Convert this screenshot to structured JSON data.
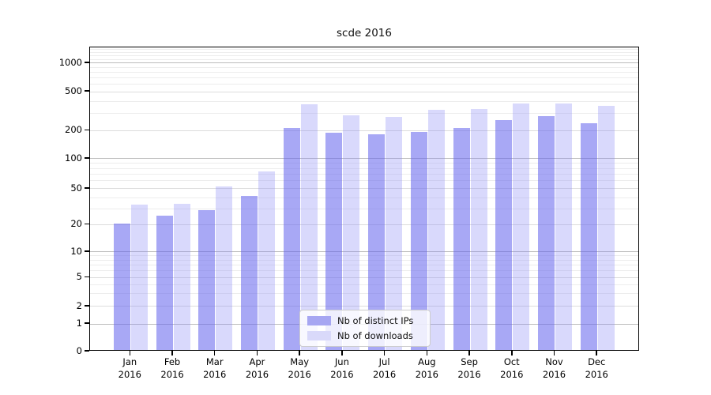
{
  "title": "scde 2016",
  "chart_data": {
    "type": "bar",
    "title": "scde 2016",
    "categories": [
      "Jan 2016",
      "Feb 2016",
      "Mar 2016",
      "Apr 2016",
      "May 2016",
      "Jun 2016",
      "Jul 2016",
      "Aug 2016",
      "Sep 2016",
      "Oct 2016",
      "Nov 2016",
      "Dec 2016"
    ],
    "series": [
      {
        "name": "Nb of distinct IPs",
        "color": "rgba(102,102,238,0.57)",
        "legend_color": "#a6a6f2",
        "values": [
          20,
          24,
          28,
          40,
          207,
          184,
          176,
          186,
          206,
          249,
          273,
          231
        ]
      },
      {
        "name": "Nb of downloads",
        "color": "rgba(140,140,245,0.33)",
        "legend_color": "#d9d9fa",
        "values": [
          32,
          33,
          51,
          72,
          357,
          275,
          268,
          315,
          319,
          364,
          366,
          344
        ]
      }
    ],
    "xlabel": "",
    "ylabel": "",
    "yscale": "symlog",
    "yticks": [
      0,
      1,
      2,
      5,
      10,
      20,
      50,
      100,
      200,
      500,
      1000
    ],
    "ylim": [
      0,
      1450
    ],
    "grid": "both",
    "legend_position": "inside lower-center",
    "colors": {
      "major_gridline": "#bdbdbd",
      "labeled_minor_gridline": "#dcdcdc",
      "minor_gridline": "#ededed",
      "axis": "#000000",
      "background": "#ffffff"
    }
  }
}
